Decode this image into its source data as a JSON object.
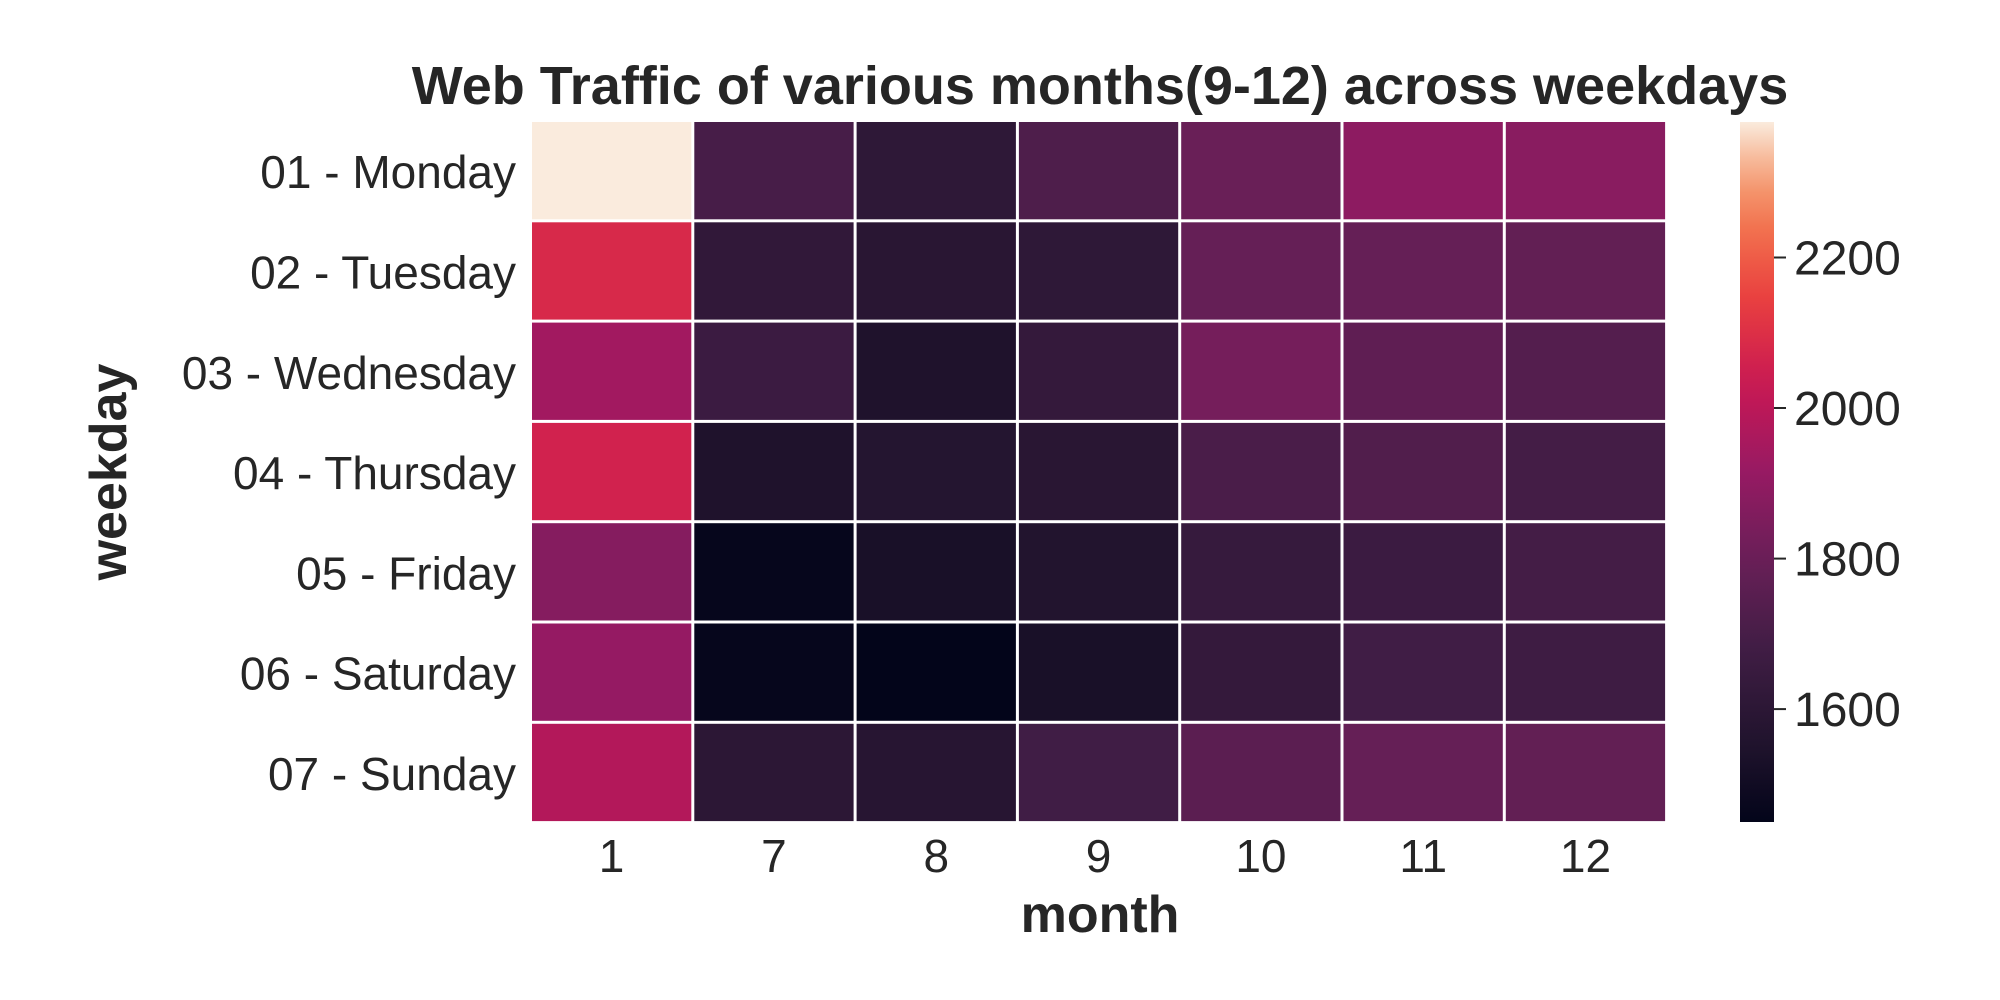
{
  "chart_data": {
    "type": "heatmap",
    "title": "Web Traffic of various months(9-12) across weekdays",
    "xlabel": "month",
    "ylabel": "weekday",
    "x_categories": [
      "1",
      "7",
      "8",
      "9",
      "10",
      "11",
      "12"
    ],
    "y_categories": [
      "01 - Monday",
      "02 - Tuesday",
      "03 - Wednesday",
      "04 - Thursday",
      "05 - Friday",
      "06 - Saturday",
      "07 - Sunday"
    ],
    "values": [
      [
        2380,
        1700,
        1610,
        1720,
        1800,
        1890,
        1880
      ],
      [
        2080,
        1620,
        1590,
        1610,
        1790,
        1790,
        1780
      ],
      [
        1940,
        1660,
        1550,
        1630,
        1830,
        1770,
        1740
      ],
      [
        2060,
        1550,
        1570,
        1590,
        1710,
        1730,
        1690
      ],
      [
        1870,
        1460,
        1530,
        1560,
        1640,
        1660,
        1690
      ],
      [
        1910,
        1460,
        1450,
        1530,
        1630,
        1680,
        1670
      ],
      [
        1980,
        1600,
        1580,
        1680,
        1760,
        1790,
        1780
      ]
    ],
    "colorbar": {
      "min": 1450,
      "max": 2380,
      "ticks": [
        "1600",
        "1800",
        "2000",
        "2200"
      ],
      "colormap": "rocket"
    },
    "grid": true,
    "legend": "colorbar-right"
  }
}
